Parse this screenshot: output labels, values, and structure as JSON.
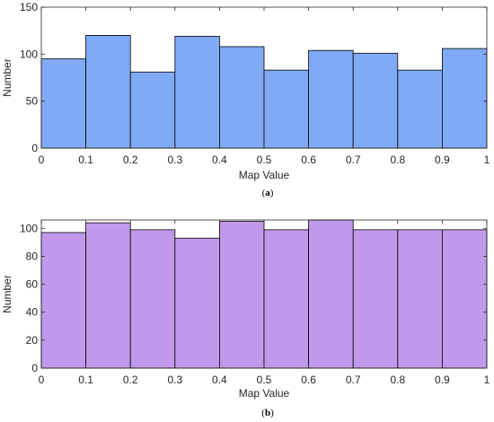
{
  "chart_data": [
    {
      "type": "bar",
      "caption": "(a)",
      "xlabel": "Map Value",
      "ylabel": "Number",
      "bin_edges": [
        0,
        0.1,
        0.2,
        0.3,
        0.4,
        0.5,
        0.6,
        0.7,
        0.8,
        0.9,
        1
      ],
      "values": [
        95,
        120,
        81,
        119,
        108,
        83,
        104,
        101,
        83,
        106
      ],
      "xlim": [
        0,
        1
      ],
      "ylim": [
        0,
        150
      ],
      "xticks": [
        "0",
        "0.1",
        "0.2",
        "0.3",
        "0.4",
        "0.5",
        "0.6",
        "0.7",
        "0.8",
        "0.9",
        "1"
      ],
      "yticks": [
        "0",
        "50",
        "100",
        "150"
      ],
      "bar_color": "#80aaf5",
      "grid": false
    },
    {
      "type": "bar",
      "caption": "(b)",
      "xlabel": "Map Value",
      "ylabel": "Number",
      "bin_edges": [
        0,
        0.1,
        0.2,
        0.3,
        0.4,
        0.5,
        0.6,
        0.7,
        0.8,
        0.9,
        1
      ],
      "values": [
        97,
        104,
        99,
        93,
        105,
        99,
        106,
        99,
        99,
        99
      ],
      "xlim": [
        0,
        1
      ],
      "ylim": [
        0,
        106
      ],
      "xticks": [
        "0",
        "0.1",
        "0.2",
        "0.3",
        "0.4",
        "0.5",
        "0.6",
        "0.7",
        "0.8",
        "0.9",
        "1"
      ],
      "yticks": [
        "0",
        "20",
        "40",
        "60",
        "80",
        "100"
      ],
      "bar_color": "#c199ea",
      "grid": false
    }
  ]
}
